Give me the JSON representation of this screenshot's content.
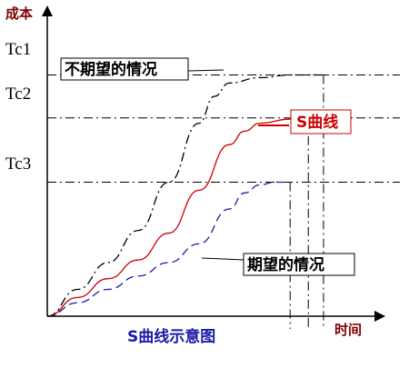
{
  "chart_data": {
    "type": "line",
    "title": "S曲线示意图",
    "ylabel": "成本",
    "xlabel": "时间",
    "xlim": [
      0,
      1
    ],
    "ylim": [
      0,
      1
    ],
    "y_ticks": [
      {
        "label": "Tc1",
        "value": 0.9
      },
      {
        "label": "Tc2",
        "value": 0.74
      },
      {
        "label": "Tc3",
        "value": 0.5
      }
    ],
    "series": [
      {
        "name": "不期望的情况",
        "style": "dash-dot",
        "color": "#000000",
        "x": [
          0,
          0.1,
          0.2,
          0.3,
          0.4,
          0.5,
          0.55,
          0.6,
          0.7,
          0.8,
          0.91
        ],
        "y": [
          0,
          0.1,
          0.2,
          0.32,
          0.5,
          0.72,
          0.82,
          0.87,
          0.89,
          0.9,
          0.9
        ]
      },
      {
        "name": "S曲线",
        "style": "solid",
        "color": "#cc0000",
        "x": [
          0,
          0.1,
          0.2,
          0.3,
          0.4,
          0.5,
          0.6,
          0.65,
          0.7,
          0.8,
          0.86
        ],
        "y": [
          0,
          0.07,
          0.14,
          0.21,
          0.31,
          0.47,
          0.64,
          0.69,
          0.72,
          0.735,
          0.74
        ]
      },
      {
        "name": "期望的情况",
        "style": "dashed",
        "color": "#1a1aa8",
        "x": [
          0,
          0.1,
          0.2,
          0.3,
          0.4,
          0.5,
          0.6,
          0.65,
          0.7,
          0.75,
          0.8
        ],
        "y": [
          0,
          0.05,
          0.1,
          0.15,
          0.2,
          0.27,
          0.4,
          0.46,
          0.49,
          0.5,
          0.5
        ]
      }
    ]
  }
}
